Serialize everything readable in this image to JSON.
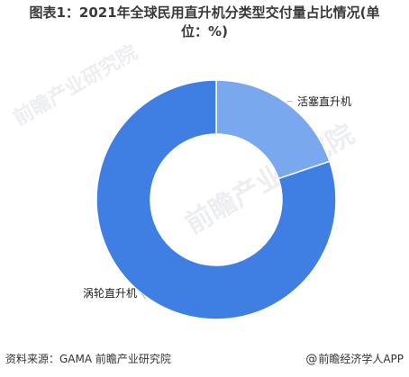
{
  "title": {
    "line1": "图表1：2021年全球民用直升机分类型交付量占比情况(单",
    "line2": "位：%)"
  },
  "chart_data": {
    "type": "pie",
    "variant": "donut",
    "slices": [
      {
        "label": "活塞直升机",
        "value": 19.8,
        "color": "#7aa8ee"
      },
      {
        "label": "涡轮直升机",
        "value": 80.2,
        "color": "#3f7ee2"
      }
    ],
    "start_angle_deg": 0,
    "direction": "clockwise"
  },
  "footer": {
    "source": "资料来源：GAMA 前瞻产业研究院",
    "brand": "前瞻经济学人APP",
    "brand_icon": "at-sign-icon"
  },
  "watermark": {
    "brand": "前瞻产业研究院"
  }
}
